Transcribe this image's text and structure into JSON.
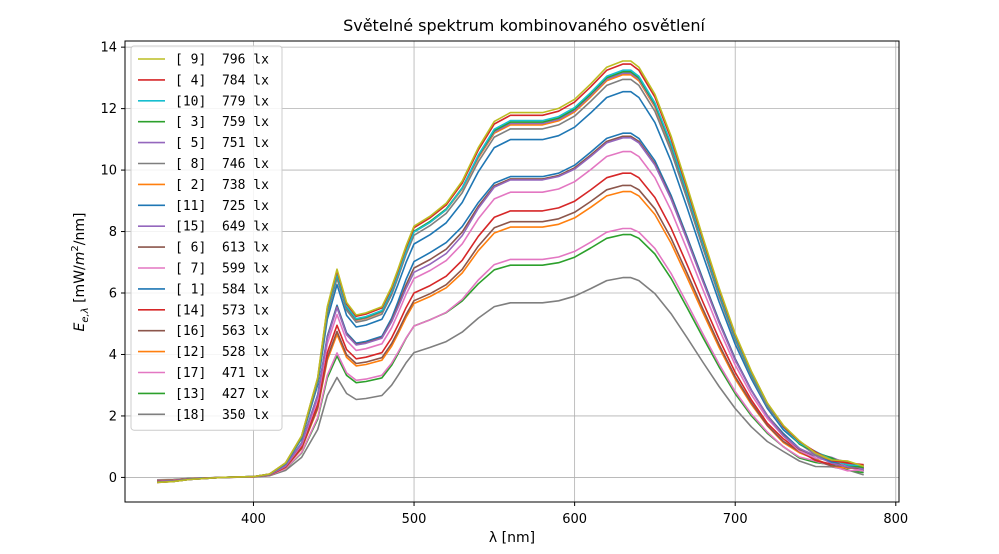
{
  "chart_data": {
    "type": "line",
    "title": "Světelné spektrum kombinovaného osvětlení",
    "xlabel": "λ [nm]",
    "ylabel": "E_{e,λ} [mW/m²/nm]",
    "ylabel_main": "E",
    "ylabel_sub": "e,λ",
    "ylabel_unit_a": " [mW/",
    "ylabel_unit_m": "m",
    "ylabel_unit_exp": "2",
    "ylabel_unit_b": "/nm]",
    "xlim": [
      320,
      802
    ],
    "ylim": [
      -0.8,
      14.2
    ],
    "xticks": [
      400,
      500,
      600,
      700,
      800
    ],
    "yticks": [
      0,
      2,
      4,
      6,
      8,
      10,
      12,
      14
    ],
    "grid": true,
    "legend_position": "upper-left",
    "series": [
      {
        "name": "[ 9]  796 lx",
        "color": "#bcbd22",
        "peak": 13.55,
        "k": 0.607
      },
      {
        "name": "[ 4]  784 lx",
        "color": "#d62728",
        "peak": 13.45,
        "k": 0.6
      },
      {
        "name": "[10]  779 lx",
        "color": "#17becf",
        "peak": 13.25,
        "k": 0.615
      },
      {
        "name": "[ 3]  759 lx",
        "color": "#2ca02c",
        "peak": 13.2,
        "k": 0.575
      },
      {
        "name": "[ 5]  751 lx",
        "color": "#9467bd",
        "peak": 13.15,
        "k": 0.56
      },
      {
        "name": "[ 8]  746 lx",
        "color": "#7f7f7f",
        "peak": 12.95,
        "k": 0.56
      },
      {
        "name": "[ 2]  738 lx",
        "color": "#ff7f0e",
        "peak": 13.1,
        "k": 0.55
      },
      {
        "name": "[11]  725 lx",
        "color": "#1f77b4",
        "peak": 12.55,
        "k": 0.59
      },
      {
        "name": "[15]  649 lx",
        "color": "#9467bd",
        "peak": 11.05,
        "k": 0.6
      },
      {
        "name": "[ 6]  613 lx",
        "color": "#8c564b",
        "peak": 11.1,
        "k": 0.51
      },
      {
        "name": "[ 7]  599 lx",
        "color": "#e377c2",
        "peak": 10.6,
        "k": 0.54
      },
      {
        "name": "[ 1]  584 lx",
        "color": "#1f77b4",
        "peak": 11.2,
        "k": 0.39
      },
      {
        "name": "[14]  573 lx",
        "color": "#d62728",
        "peak": 9.9,
        "k": 0.58
      },
      {
        "name": "[16]  563 lx",
        "color": "#8c564b",
        "peak": 9.5,
        "k": 0.59
      },
      {
        "name": "[12]  528 lx",
        "color": "#ff7f0e",
        "peak": 9.3,
        "k": 0.56
      },
      {
        "name": "[17]  471 lx",
        "color": "#e377c2",
        "peak": 8.1,
        "k": 0.56
      },
      {
        "name": "[13]  427 lx",
        "color": "#2ca02c",
        "peak": 7.9,
        "k": 0.42
      },
      {
        "name": "[18]  350 lx",
        "color": "#7f7f7f",
        "peak": 6.5,
        "k": 0.41
      }
    ],
    "x": [
      340,
      350,
      360,
      380,
      400,
      410,
      420,
      430,
      440,
      446,
      452,
      458,
      464,
      470,
      480,
      486,
      490,
      495,
      500,
      510,
      520,
      530,
      540,
      550,
      560,
      570,
      580,
      590,
      600,
      610,
      620,
      630,
      635,
      640,
      650,
      660,
      670,
      680,
      690,
      700,
      710,
      720,
      730,
      740,
      750,
      760,
      770,
      780
    ],
    "profile": [
      -0.012,
      -0.01,
      -0.005,
      0.0,
      0.002,
      0.008,
      0.035,
      0.1,
      0.24,
      0.41,
      0.5,
      0.42,
      0.39,
      0.395,
      0.41,
      0.47,
      0.53,
      0.61,
      0.67,
      0.7,
      0.725,
      0.76,
      0.81,
      0.855,
      0.87,
      0.87,
      0.87,
      0.88,
      0.905,
      0.945,
      0.985,
      1.0,
      1.0,
      0.985,
      0.92,
      0.82,
      0.7,
      0.575,
      0.455,
      0.345,
      0.255,
      0.18,
      0.125,
      0.085,
      0.06,
      0.045,
      0.035,
      0.025
    ],
    "shape": [
      0,
      0,
      0,
      0,
      0,
      0,
      0,
      0,
      0,
      0,
      0,
      0,
      0,
      0,
      0,
      -0.02,
      -0.05,
      -0.09,
      -0.11,
      -0.12,
      -0.11,
      -0.08,
      -0.03,
      0,
      0.01,
      0.01,
      0.01,
      0.01,
      0.005,
      0,
      0,
      0,
      0,
      0,
      0,
      0,
      0,
      0,
      0,
      0,
      0,
      0,
      0,
      0,
      0,
      0,
      0,
      0
    ]
  }
}
